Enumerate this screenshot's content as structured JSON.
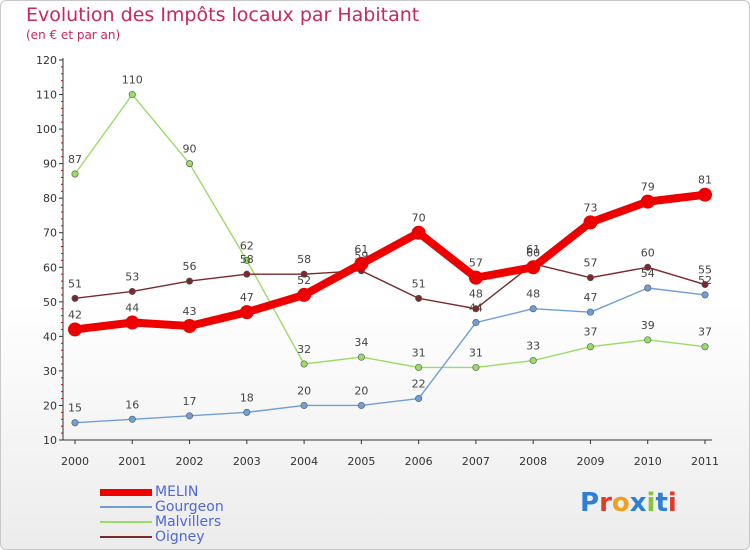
{
  "title": "Evolution des Impôts locaux par Habitant",
  "subtitle": "(en € et par an)",
  "logo_text": "Proxiti",
  "chart_data": {
    "type": "line",
    "title": "Evolution des Impôts locaux par Habitant",
    "subtitle": "(en € et par an)",
    "xlabel": "",
    "ylabel": "",
    "x": [
      "2000",
      "2001",
      "2002",
      "2003",
      "2004",
      "2005",
      "2006",
      "2007",
      "2008",
      "2009",
      "2010",
      "2011"
    ],
    "ylim": [
      10,
      120
    ],
    "yticks": [
      10,
      20,
      30,
      40,
      50,
      60,
      70,
      80,
      90,
      100,
      110,
      120
    ],
    "grid": false,
    "legend_position": "bottom-left",
    "series": [
      {
        "name": "MELIN",
        "color": "#ee0000",
        "values": [
          42,
          44,
          43,
          47,
          52,
          61,
          70,
          57,
          60,
          73,
          79,
          81
        ]
      },
      {
        "name": "Gourgeon",
        "color": "#6f9fd8",
        "values": [
          15,
          16,
          17,
          18,
          20,
          20,
          22,
          44,
          48,
          47,
          54,
          52
        ]
      },
      {
        "name": "Malvillers",
        "color": "#99dd66",
        "values": [
          87,
          110,
          90,
          62,
          32,
          34,
          31,
          31,
          33,
          37,
          39,
          37
        ]
      },
      {
        "name": "Oigney",
        "color": "#7a2a2a",
        "values": [
          51,
          53,
          56,
          58,
          58,
          59,
          51,
          48,
          61,
          57,
          60,
          55
        ]
      }
    ]
  }
}
